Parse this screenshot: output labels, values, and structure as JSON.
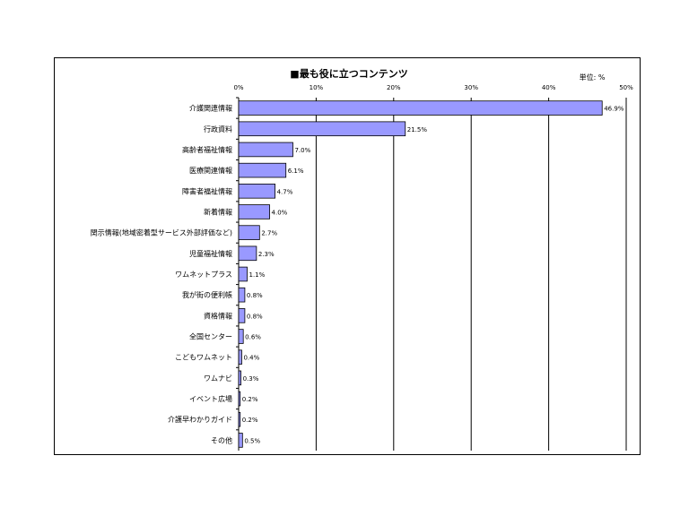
{
  "chart_data": {
    "type": "bar",
    "orientation": "horizontal",
    "title": "■最も役に立つコンテンツ",
    "unit_label": "単位: %",
    "xlim": [
      0,
      50
    ],
    "x_ticks": [
      "0%",
      "10%",
      "20%",
      "30%",
      "40%",
      "50%"
    ],
    "x_tick_values": [
      0,
      10,
      20,
      30,
      40,
      50
    ],
    "grid": true,
    "bar_color": "#9999ff",
    "categories": [
      "介護関連情報",
      "行政資料",
      "高齢者福祉情報",
      "医療関連情報",
      "障害者福祉情報",
      "新着情報",
      "関示情報(地域密着型サービス外部評価など)",
      "児童福祉情報",
      "ワムネットプラス",
      "我が街の便利帳",
      "資格情報",
      "全国センター",
      "こどもワムネット",
      "ワムナビ",
      "イベント広場",
      "介護早わかりガイド",
      "その他"
    ],
    "values": [
      46.9,
      21.5,
      7.0,
      6.1,
      4.7,
      4.0,
      2.7,
      2.3,
      1.1,
      0.8,
      0.8,
      0.6,
      0.4,
      0.3,
      0.2,
      0.2,
      0.5
    ],
    "value_labels": [
      "46.9%",
      "21.5%",
      "7.0%",
      "6.1%",
      "4.7%",
      "4.0%",
      "2.7%",
      "2.3%",
      "1.1%",
      "0.8%",
      "0.8%",
      "0.6%",
      "0.4%",
      "0.3%",
      "0.2%",
      "0.2%",
      "0.5%"
    ]
  }
}
